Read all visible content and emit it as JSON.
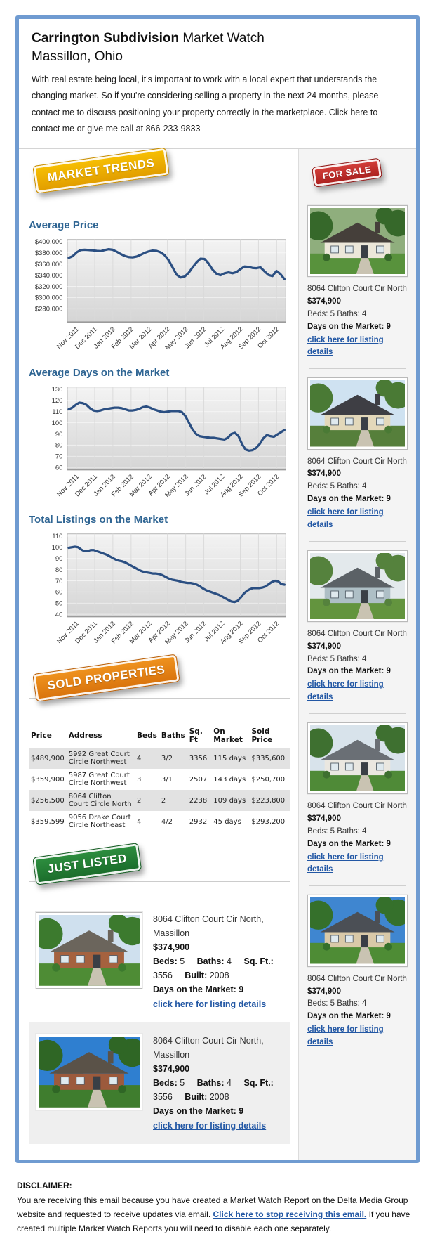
{
  "header": {
    "title_bold": "Carrington Subdivision",
    "title_rest": " Market Watch",
    "subtitle": "Massillon, Ohio",
    "intro": "With real estate being local, it's important to work with a local expert that understands the changing market. So if you're considering selling a property in the next 24 months, please contact me to discuss positioning your property correctly in the marketplace. Click here to contact me or give me call at 866-233-9833"
  },
  "badges": {
    "market_trends": {
      "label": "MARKET TRENDS",
      "color": "#efab01"
    },
    "for_sale": {
      "label": "FOR SALE",
      "color": "#c02825"
    },
    "sold_properties": {
      "label": "SOLD PROPERTIES",
      "color": "#e3821a"
    },
    "just_listed": {
      "label": "JUST LISTED",
      "color": "#227b33"
    }
  },
  "chart_data": [
    {
      "type": "line",
      "title": "Average Price",
      "xlabel": "",
      "ylabel": "",
      "x_labels": [
        "Nov 2011",
        "Dec 2011",
        "Jan 2012",
        "Feb 2012",
        "Mar 2012",
        "Apr 2012",
        "May 2012",
        "Jun 2012",
        "Jul 2012",
        "Aug 2012",
        "Sep 2012",
        "Oct 2012"
      ],
      "ylim": [
        256000,
        404000
      ],
      "ytick_values": [
        400000,
        380000,
        360000,
        340000,
        320000,
        300000,
        280000
      ],
      "ytick_labels": [
        "$400,000",
        "$380,000",
        "$360,000",
        "$340,000",
        "$320,000",
        "$300,000",
        "$280,000"
      ],
      "line_color": "#2b4f82",
      "grid": true,
      "values": [
        371000,
        374000,
        381000,
        385000,
        385500,
        385000,
        384500,
        383500,
        383000,
        385000,
        386500,
        385500,
        382000,
        378000,
        374500,
        372500,
        372000,
        373500,
        376500,
        380000,
        382500,
        384000,
        383500,
        381000,
        376000,
        367000,
        354000,
        341000,
        336000,
        337500,
        344000,
        354000,
        363000,
        369500,
        369000,
        361000,
        350000,
        342500,
        340000,
        343500,
        345000,
        343500,
        345500,
        351000,
        355500,
        355000,
        353000,
        352500,
        354000,
        347000,
        340500,
        338500,
        347500,
        342000,
        333000
      ]
    },
    {
      "type": "line",
      "title": "Average Days on the Market",
      "xlabel": "",
      "ylabel": "",
      "x_labels": [
        "Nov 2011",
        "Dec 2011",
        "Jan 2012",
        "Feb 2012",
        "Mar 2012",
        "Apr 2012",
        "May 2012",
        "Jun 2012",
        "Jul 2012",
        "Aug 2012",
        "Sep 2012",
        "Oct 2012"
      ],
      "ylim": [
        58,
        132
      ],
      "ytick_values": [
        130,
        120,
        110,
        100,
        90,
        80,
        70,
        60
      ],
      "ytick_labels": [
        "130",
        "120",
        "110",
        "100",
        "90",
        "80",
        "70",
        "60"
      ],
      "line_color": "#2b4f82",
      "grid": true,
      "values": [
        112,
        113.5,
        116,
        118,
        117.5,
        116,
        113,
        111,
        110.5,
        111,
        112,
        112.5,
        113,
        113.5,
        113.5,
        113,
        112,
        111,
        111,
        111.5,
        112.5,
        114,
        114.5,
        113.5,
        112,
        111,
        110,
        109.5,
        110,
        110.5,
        110.5,
        110.5,
        109.5,
        106,
        100,
        94,
        90,
        88,
        87.5,
        87,
        86.5,
        86.5,
        86,
        85.5,
        85,
        86.5,
        90,
        91,
        88,
        81,
        76,
        75,
        75.5,
        77.5,
        81,
        86,
        89,
        88,
        87.5,
        89.5,
        91.5,
        93.5
      ]
    },
    {
      "type": "line",
      "title": "Total Listings on the Market",
      "xlabel": "",
      "ylabel": "",
      "x_labels": [
        "Nov 2011",
        "Dec 2011",
        "Jan 2012",
        "Feb 2012",
        "Mar 2012",
        "Apr 2012",
        "May 2012",
        "Jun 2012",
        "Jul 2012",
        "Aug 2012",
        "Sep 2012",
        "Oct 2012"
      ],
      "ylim": [
        38,
        112
      ],
      "ytick_values": [
        110,
        100,
        90,
        80,
        70,
        60,
        50,
        40
      ],
      "ytick_labels": [
        "110",
        "100",
        "90",
        "80",
        "70",
        "60",
        "50",
        "40"
      ],
      "line_color": "#2b4f82",
      "grid": true,
      "values": [
        99.5,
        100,
        100.5,
        100,
        98,
        96.5,
        96.5,
        97.5,
        97.5,
        96.5,
        95.5,
        94.5,
        93.5,
        92,
        90.5,
        89,
        88,
        87.5,
        86.5,
        85,
        83.5,
        82,
        80.5,
        79,
        78,
        77.5,
        77,
        76.5,
        76.5,
        76,
        75,
        73.5,
        72,
        71,
        70.5,
        70,
        69,
        68.5,
        68,
        68,
        67.5,
        66.5,
        65,
        63,
        61.5,
        60.5,
        59.5,
        58.5,
        57.5,
        56,
        54.5,
        53,
        51.5,
        51,
        52,
        55,
        58.5,
        61,
        62.5,
        63.5,
        63.5,
        63.5,
        64,
        65,
        67,
        69,
        70,
        69.5,
        67,
        66.5
      ]
    }
  ],
  "sold_table": {
    "headers": [
      "Price",
      "Address",
      "Beds",
      "Baths",
      "Sq. Ft",
      "On Market",
      "Sold Price"
    ],
    "rows": [
      [
        "$489,900",
        "5992 Great Court Circle Northwest",
        "4",
        "3/2",
        "3356",
        "115 days",
        "$335,600"
      ],
      [
        "$359,900",
        "5987 Great Court Circle Northwest",
        "3",
        "3/1",
        "2507",
        "143 days",
        "$250,700"
      ],
      [
        "$256,500",
        "8064 Clifton Court Circle North",
        "2",
        "2",
        "2238",
        "109 days",
        "$223,800"
      ],
      [
        "$359,599",
        "9056 Drake Court Circle Northeast",
        "4",
        "4/2",
        "2932",
        "45 days",
        "$293,200"
      ]
    ]
  },
  "for_sale": {
    "items": [
      {
        "address": "8064 Clifton Court Cir North",
        "price": "$374,900",
        "beds_baths": "Beds: 5 Baths: 4",
        "days": "Days on the Market: 9",
        "link": "click here for listing details",
        "photo": {
          "sky": "#8fae7d",
          "wall": "#ece7d9",
          "roof": "#453f3a",
          "grass": "#58923c",
          "tree": "#36682a"
        }
      },
      {
        "address": "8064 Clifton Court Cir North",
        "price": "$374,900",
        "beds_baths": "Beds: 5 Baths: 4",
        "days": "Days on the Market: 9",
        "link": "click here for listing details",
        "photo": {
          "sky": "#cfe2f1",
          "wall": "#e3d8ba",
          "roof": "#3e3e44",
          "grass": "#567f3b",
          "tree": "#4a7a35"
        }
      },
      {
        "address": "8064 Clifton Court Cir North",
        "price": "$374,900",
        "beds_baths": "Beds: 5 Baths: 4",
        "days": "Days on the Market: 9",
        "link": "click here for listing details",
        "photo": {
          "sky": "#e3e9ec",
          "wall": "#aebfc6",
          "roof": "#5b6166",
          "grass": "#63943e",
          "tree": "#55823d"
        }
      },
      {
        "address": "8064 Clifton Court Cir North",
        "price": "$374,900",
        "beds_baths": "Beds: 5 Baths: 4",
        "days": "Days on the Market: 9",
        "link": "click here for listing details",
        "photo": {
          "sky": "#d8e3eb",
          "wall": "#eae7e0",
          "roof": "#6a6f75",
          "grass": "#4f8a37",
          "tree": "#3e7030"
        }
      },
      {
        "address": "8064 Clifton Court Cir North",
        "price": "$374,900",
        "beds_baths": "Beds: 5 Baths: 4",
        "days": "Days on the Market: 9",
        "link": "click here for listing details",
        "photo": {
          "sky": "#3f86d0",
          "wall": "#d9c9a8",
          "roof": "#4b4f55",
          "grass": "#4e8c35",
          "tree": "#35702b"
        }
      }
    ]
  },
  "just_listed": {
    "items": [
      {
        "address": "8064 Clifton Court Cir North, Massillon",
        "price": "$374,900",
        "specs": [
          {
            "label": "Beds:",
            "value": "5"
          },
          {
            "label": "Baths:",
            "value": "4"
          },
          {
            "label": "Sq. Ft.:",
            "value": "3556"
          },
          {
            "label": "Built:",
            "value": "2008"
          }
        ],
        "days": "Days on the Market: 9",
        "link": "click here for listing details",
        "photo": {
          "sky": "#cfe0ee",
          "wall": "#a5623f",
          "roof": "#6b655c",
          "grass": "#4e8c35",
          "tree": "#3c7a2e"
        }
      },
      {
        "address": "8064 Clifton Court Cir North, Massillon",
        "price": "$374,900",
        "specs": [
          {
            "label": "Beds:",
            "value": "5"
          },
          {
            "label": "Baths:",
            "value": "4"
          },
          {
            "label": "Sq. Ft.:",
            "value": "3556"
          },
          {
            "label": "Built:",
            "value": "2008"
          }
        ],
        "days": "Days on the Market: 9",
        "link": "click here for listing details",
        "photo": {
          "sky": "#2f7fd0",
          "wall": "#9c5a3c",
          "roof": "#5a5248",
          "grass": "#3f7d2e",
          "tree": "#2f6625"
        }
      }
    ]
  },
  "disclaimer": {
    "heading": "DISCLAIMER:",
    "text_before": "You are receiving this email because you have created a Market Watch Report on the Delta Media Group website and requested to receive updates via email. ",
    "link": "Click here to stop receiving this email.",
    "text_after": " If you have created multiple Market Watch Reports you will need to disable each one separately."
  }
}
